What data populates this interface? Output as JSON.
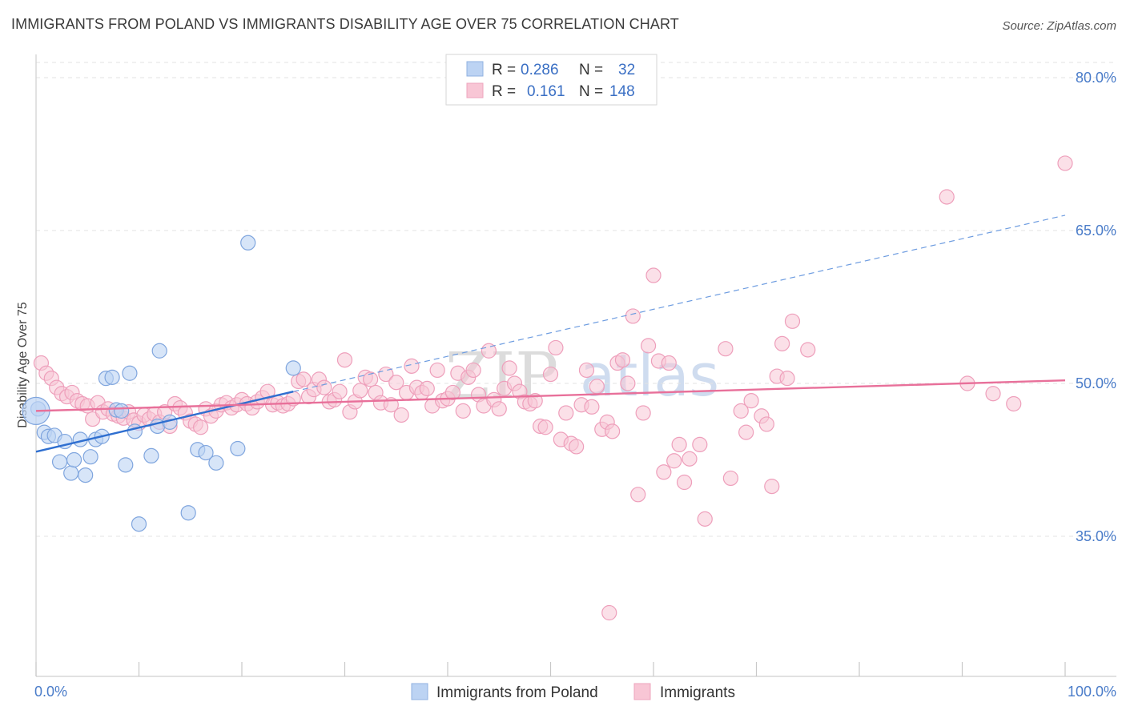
{
  "title": "IMMIGRANTS FROM POLAND VS IMMIGRANTS DISABILITY AGE OVER 75 CORRELATION CHART",
  "source": "Source: ZipAtlas.com",
  "watermark": {
    "zip": "ZIP",
    "atlas": "atlas"
  },
  "colors": {
    "blue": "#a9c6ef",
    "blue_line": "#2f6fd0",
    "pink": "#f4b6c8",
    "pink_line": "#e8709a",
    "tick": "#4a7cc9"
  },
  "legend_top": {
    "rows": [
      {
        "r_label": "R =",
        "r_value": "0.286",
        "n_label": "N =",
        "n_value": "32"
      },
      {
        "r_label": "R =",
        "r_value": "0.161",
        "n_label": "N =",
        "n_value": "148"
      }
    ]
  },
  "chart_data": {
    "type": "scatter",
    "ylabel": "Disability Age Over 75",
    "xlim": [
      0,
      100
    ],
    "ylim": [
      20,
      84
    ],
    "y_ticks": [
      {
        "value": 80,
        "label": "80.0%"
      },
      {
        "value": 65,
        "label": "65.0%"
      },
      {
        "value": 50,
        "label": "50.0%"
      },
      {
        "value": 35,
        "label": "35.0%"
      }
    ],
    "x_tick_labels": {
      "min": "0.0%",
      "max": "100.0%"
    },
    "series": [
      {
        "name": "Immigrants from Poland",
        "color": "#a9c6ef",
        "points": [
          [
            0.2,
            47.5
          ],
          [
            0.8,
            45.2
          ],
          [
            1.2,
            44.8
          ],
          [
            1.8,
            44.9
          ],
          [
            2.3,
            42.3
          ],
          [
            2.8,
            44.3
          ],
          [
            3.4,
            41.2
          ],
          [
            3.7,
            42.5
          ],
          [
            4.3,
            44.5
          ],
          [
            4.8,
            41.0
          ],
          [
            5.3,
            42.8
          ],
          [
            5.8,
            44.5
          ],
          [
            6.4,
            44.8
          ],
          [
            6.8,
            50.5
          ],
          [
            7.4,
            50.6
          ],
          [
            7.8,
            47.4
          ],
          [
            8.3,
            47.3
          ],
          [
            8.7,
            42.0
          ],
          [
            9.1,
            51.0
          ],
          [
            9.6,
            45.3
          ],
          [
            10.0,
            36.2
          ],
          [
            11.2,
            42.9
          ],
          [
            11.8,
            45.8
          ],
          [
            12.0,
            53.2
          ],
          [
            13.0,
            46.2
          ],
          [
            14.8,
            37.3
          ],
          [
            15.7,
            43.5
          ],
          [
            16.5,
            43.2
          ],
          [
            17.5,
            42.2
          ],
          [
            19.6,
            43.6
          ],
          [
            20.6,
            63.8
          ],
          [
            25.0,
            51.5
          ]
        ],
        "trend": {
          "x0": 0,
          "y0": 43.3,
          "x1": 25,
          "y1": 49.2,
          "dash_x1": 100,
          "dash_y1": 66.5
        }
      },
      {
        "name": "Immigrants",
        "color": "#f4b6c8",
        "points": [
          [
            0.5,
            52.0
          ],
          [
            1.0,
            51.0
          ],
          [
            1.5,
            50.5
          ],
          [
            2.0,
            49.6
          ],
          [
            2.5,
            49.0
          ],
          [
            3.0,
            48.7
          ],
          [
            3.5,
            49.1
          ],
          [
            4.0,
            48.3
          ],
          [
            4.5,
            48.0
          ],
          [
            5.0,
            47.8
          ],
          [
            5.5,
            46.5
          ],
          [
            6.0,
            48.1
          ],
          [
            6.5,
            47.2
          ],
          [
            7.0,
            47.5
          ],
          [
            7.5,
            47.0
          ],
          [
            8.0,
            46.8
          ],
          [
            8.5,
            46.6
          ],
          [
            9.0,
            47.2
          ],
          [
            9.5,
            46.4
          ],
          [
            10.0,
            46.1
          ],
          [
            10.5,
            46.9
          ],
          [
            11.0,
            46.5
          ],
          [
            11.5,
            47.0
          ],
          [
            12.0,
            46.2
          ],
          [
            12.5,
            47.2
          ],
          [
            13.0,
            45.8
          ],
          [
            13.5,
            48.0
          ],
          [
            14.0,
            47.6
          ],
          [
            14.5,
            47.1
          ],
          [
            15.0,
            46.3
          ],
          [
            15.5,
            46.0
          ],
          [
            16.0,
            45.7
          ],
          [
            16.5,
            47.5
          ],
          [
            17.0,
            46.8
          ],
          [
            17.5,
            47.3
          ],
          [
            18.0,
            47.9
          ],
          [
            18.5,
            48.1
          ],
          [
            19.0,
            47.6
          ],
          [
            19.5,
            47.9
          ],
          [
            20.0,
            48.4
          ],
          [
            20.5,
            48.0
          ],
          [
            21.0,
            47.6
          ],
          [
            21.5,
            48.2
          ],
          [
            22.0,
            48.6
          ],
          [
            22.5,
            49.2
          ],
          [
            23.0,
            47.9
          ],
          [
            23.5,
            48.1
          ],
          [
            24.0,
            47.8
          ],
          [
            24.5,
            48.0
          ],
          [
            25.0,
            48.5
          ],
          [
            25.5,
            50.2
          ],
          [
            26.0,
            50.4
          ],
          [
            26.5,
            48.7
          ],
          [
            27.0,
            49.4
          ],
          [
            27.5,
            50.4
          ],
          [
            28.0,
            49.6
          ],
          [
            28.5,
            48.2
          ],
          [
            29.0,
            48.4
          ],
          [
            29.5,
            49.2
          ],
          [
            30.0,
            52.3
          ],
          [
            30.5,
            47.2
          ],
          [
            31.0,
            48.2
          ],
          [
            31.5,
            49.3
          ],
          [
            32.0,
            50.6
          ],
          [
            32.5,
            50.4
          ],
          [
            33.0,
            49.1
          ],
          [
            33.5,
            48.1
          ],
          [
            34.0,
            50.9
          ],
          [
            34.5,
            47.9
          ],
          [
            35.0,
            50.1
          ],
          [
            35.5,
            46.9
          ],
          [
            36.0,
            49.1
          ],
          [
            36.5,
            51.7
          ],
          [
            37.0,
            49.6
          ],
          [
            37.5,
            49.1
          ],
          [
            38.0,
            49.5
          ],
          [
            38.5,
            47.8
          ],
          [
            39.0,
            51.3
          ],
          [
            39.5,
            48.3
          ],
          [
            40.0,
            48.5
          ],
          [
            40.5,
            49.1
          ],
          [
            41.0,
            51.0
          ],
          [
            41.5,
            47.3
          ],
          [
            42.0,
            50.6
          ],
          [
            42.5,
            51.3
          ],
          [
            43.0,
            48.9
          ],
          [
            43.5,
            47.8
          ],
          [
            44.0,
            53.2
          ],
          [
            44.5,
            48.4
          ],
          [
            45.0,
            47.5
          ],
          [
            45.5,
            49.5
          ],
          [
            46.0,
            51.5
          ],
          [
            46.5,
            50.0
          ],
          [
            47.0,
            49.2
          ],
          [
            47.5,
            48.2
          ],
          [
            48.0,
            48.0
          ],
          [
            48.5,
            48.3
          ],
          [
            49.0,
            45.8
          ],
          [
            49.5,
            45.7
          ],
          [
            50.0,
            50.9
          ],
          [
            50.5,
            53.5
          ],
          [
            51.0,
            44.5
          ],
          [
            51.5,
            47.1
          ],
          [
            52.0,
            44.1
          ],
          [
            52.5,
            43.8
          ],
          [
            53.0,
            47.9
          ],
          [
            53.5,
            51.3
          ],
          [
            54.0,
            47.7
          ],
          [
            54.5,
            49.7
          ],
          [
            55.0,
            45.5
          ],
          [
            55.5,
            46.2
          ],
          [
            56.0,
            45.3
          ],
          [
            56.5,
            52.0
          ],
          [
            57.0,
            52.3
          ],
          [
            57.5,
            50.0
          ],
          [
            58.0,
            56.6
          ],
          [
            58.5,
            39.1
          ],
          [
            59.0,
            47.1
          ],
          [
            59.5,
            53.7
          ],
          [
            60.0,
            60.6
          ],
          [
            60.5,
            52.2
          ],
          [
            61.0,
            41.3
          ],
          [
            61.5,
            52.0
          ],
          [
            62.0,
            42.4
          ],
          [
            62.5,
            44.0
          ],
          [
            63.0,
            40.3
          ],
          [
            63.5,
            42.6
          ],
          [
            64.5,
            44.0
          ],
          [
            65.0,
            36.7
          ],
          [
            67.0,
            53.4
          ],
          [
            67.5,
            40.7
          ],
          [
            68.5,
            47.3
          ],
          [
            69.0,
            45.2
          ],
          [
            69.5,
            48.3
          ],
          [
            70.5,
            46.8
          ],
          [
            71.0,
            46.0
          ],
          [
            71.5,
            39.9
          ],
          [
            72.0,
            50.7
          ],
          [
            72.5,
            53.9
          ],
          [
            73.0,
            50.5
          ],
          [
            73.5,
            56.1
          ],
          [
            75.0,
            53.3
          ],
          [
            90.5,
            50.0
          ],
          [
            88.5,
            68.3
          ],
          [
            55.7,
            27.5
          ],
          [
            100.0,
            71.6
          ],
          [
            93.0,
            49.0
          ],
          [
            95.0,
            48.0
          ]
        ],
        "trend": {
          "x0": 0,
          "y0": 47.3,
          "x1": 100,
          "y1": 50.3
        }
      }
    ]
  }
}
